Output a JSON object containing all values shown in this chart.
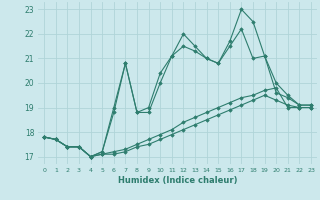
{
  "xlabel": "Humidex (Indice chaleur)",
  "bg_color": "#cce8ec",
  "grid_color": "#b0d4d8",
  "line_color": "#2e7d6e",
  "xlim": [
    -0.5,
    23.5
  ],
  "ylim": [
    16.7,
    23.3
  ],
  "yticks": [
    17,
    18,
    19,
    20,
    21,
    22,
    23
  ],
  "xticks": [
    0,
    1,
    2,
    3,
    4,
    5,
    6,
    7,
    8,
    9,
    10,
    11,
    12,
    13,
    14,
    15,
    16,
    17,
    18,
    19,
    20,
    21,
    22,
    23
  ],
  "series": [
    [
      17.8,
      17.7,
      17.4,
      17.4,
      17.0,
      17.2,
      18.8,
      20.8,
      18.8,
      19.0,
      20.4,
      21.1,
      22.0,
      21.5,
      21.0,
      20.8,
      21.7,
      23.0,
      22.5,
      21.1,
      20.0,
      19.5,
      19.1,
      19.1
    ],
    [
      17.8,
      17.7,
      17.4,
      17.4,
      17.0,
      17.2,
      19.0,
      20.8,
      18.8,
      18.8,
      20.0,
      21.1,
      21.5,
      21.3,
      21.0,
      20.8,
      21.5,
      22.2,
      21.0,
      21.1,
      19.6,
      19.4,
      19.1,
      19.1
    ],
    [
      17.8,
      17.7,
      17.4,
      17.4,
      17.0,
      17.1,
      17.2,
      17.3,
      17.5,
      17.7,
      17.9,
      18.1,
      18.4,
      18.6,
      18.8,
      19.0,
      19.2,
      19.4,
      19.5,
      19.7,
      19.8,
      19.0,
      19.0,
      19.0
    ],
    [
      17.8,
      17.7,
      17.4,
      17.4,
      17.0,
      17.1,
      17.1,
      17.2,
      17.4,
      17.5,
      17.7,
      17.9,
      18.1,
      18.3,
      18.5,
      18.7,
      18.9,
      19.1,
      19.3,
      19.5,
      19.3,
      19.1,
      19.0,
      19.0
    ]
  ]
}
